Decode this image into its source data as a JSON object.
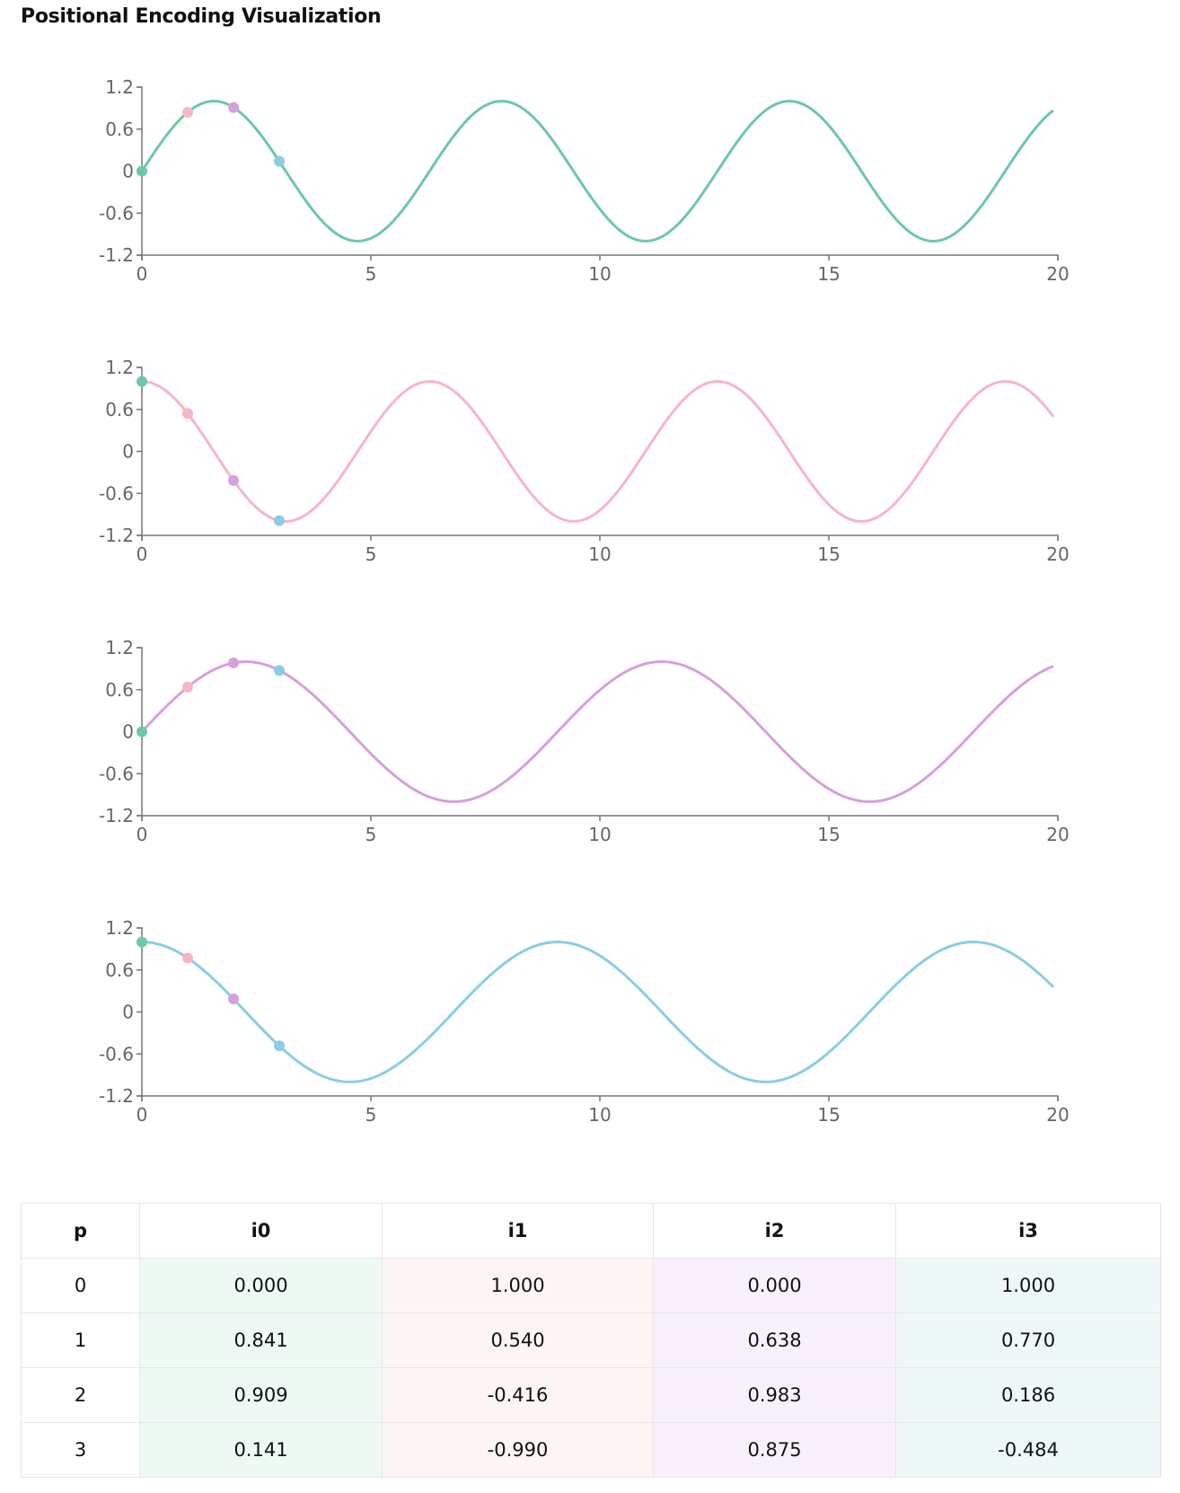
{
  "title": "Positional Encoding Visualization",
  "chart_data": [
    {
      "type": "line",
      "function": "sin",
      "frequency": 1,
      "color": "#6cc9a4",
      "x_range": [
        0,
        19.9
      ],
      "xlim": [
        0,
        20
      ],
      "ylim": [
        -1.2,
        1.2
      ],
      "xticks": [
        "0",
        "5",
        "10",
        "15",
        "20"
      ],
      "yticks": [
        "1.2",
        "0.6",
        "0",
        "-0.6",
        "-1.2"
      ],
      "points": {
        "x": [
          0,
          1,
          2,
          3
        ],
        "y": [
          0.0,
          0.841,
          0.909,
          0.141
        ]
      }
    },
    {
      "type": "line",
      "function": "cos",
      "frequency": 1,
      "color": "#f7b6c4",
      "x_range": [
        0,
        19.9
      ],
      "xlim": [
        0,
        20
      ],
      "ylim": [
        -1.2,
        1.2
      ],
      "xticks": [
        "0",
        "5",
        "10",
        "15",
        "20"
      ],
      "yticks": [
        "1.2",
        "0.6",
        "0",
        "-0.6",
        "-1.2"
      ],
      "points": {
        "x": [
          0,
          1,
          2,
          3
        ],
        "y": [
          1.0,
          0.54,
          -0.416,
          -0.99
        ]
      }
    },
    {
      "type": "line",
      "function": "sin",
      "frequency": 0.6921,
      "color": "#d6a0dc",
      "x_range": [
        0,
        19.9
      ],
      "xlim": [
        0,
        20
      ],
      "ylim": [
        -1.2,
        1.2
      ],
      "xticks": [
        "0",
        "5",
        "10",
        "15",
        "20"
      ],
      "yticks": [
        "1.2",
        "0.6",
        "0",
        "-0.6",
        "-1.2"
      ],
      "points": {
        "x": [
          0,
          1,
          2,
          3
        ],
        "y": [
          0.0,
          0.638,
          0.983,
          0.875
        ]
      }
    },
    {
      "type": "line",
      "function": "cos",
      "frequency": 0.6921,
      "color": "#8acde4",
      "x_range": [
        0,
        19.9
      ],
      "xlim": [
        0,
        20
      ],
      "ylim": [
        -1.2,
        1.2
      ],
      "xticks": [
        "0",
        "5",
        "10",
        "15",
        "20"
      ],
      "yticks": [
        "1.2",
        "0.6",
        "0",
        "-0.6",
        "-1.2"
      ],
      "points": {
        "x": [
          0,
          1,
          2,
          3
        ],
        "y": [
          1.0,
          0.77,
          0.186,
          -0.484
        ]
      }
    }
  ],
  "point_colors": [
    "#6cc9a4",
    "#f7b6c4",
    "#d6a0dc",
    "#8acde4"
  ],
  "table": {
    "headers": [
      "p",
      "i0",
      "i1",
      "i2",
      "i3"
    ],
    "column_bg": [
      "#ffffff",
      "#eef9f3",
      "#fdf4f4",
      "#f8f1fb",
      "#eff8f9"
    ],
    "rows": [
      [
        "0",
        "0.000",
        "1.000",
        "0.000",
        "1.000"
      ],
      [
        "1",
        "0.841",
        "0.540",
        "0.638",
        "0.770"
      ],
      [
        "2",
        "0.909",
        "-0.416",
        "0.983",
        "0.186"
      ],
      [
        "3",
        "0.141",
        "-0.990",
        "0.875",
        "-0.484"
      ]
    ]
  }
}
